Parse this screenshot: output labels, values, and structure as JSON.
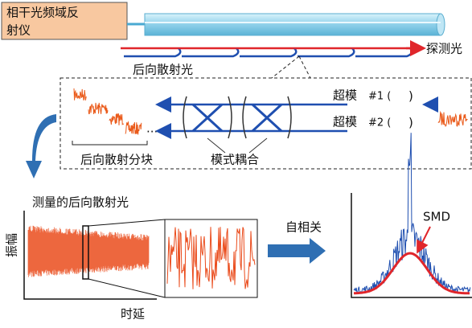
{
  "source_box": {
    "lines": [
      "相干光频域反",
      "射仪"
    ]
  },
  "probe_label": "探测光",
  "backscatter_label": "后向散射光",
  "detail": {
    "dots": "...",
    "blocks_label": "后向散射分块",
    "coupling_label": "模式耦合",
    "supermodes": [
      {
        "name": "超模",
        "id": "#1 (",
        "close": ")"
      },
      {
        "name": "超模",
        "id": "#2 (",
        "close": ")"
      }
    ]
  },
  "measurement": {
    "title": "测量的后向散射光",
    "y_label": "振幅",
    "x_label": "时延"
  },
  "autocorrelation_label": "自相关",
  "smd_label": "SMD"
}
